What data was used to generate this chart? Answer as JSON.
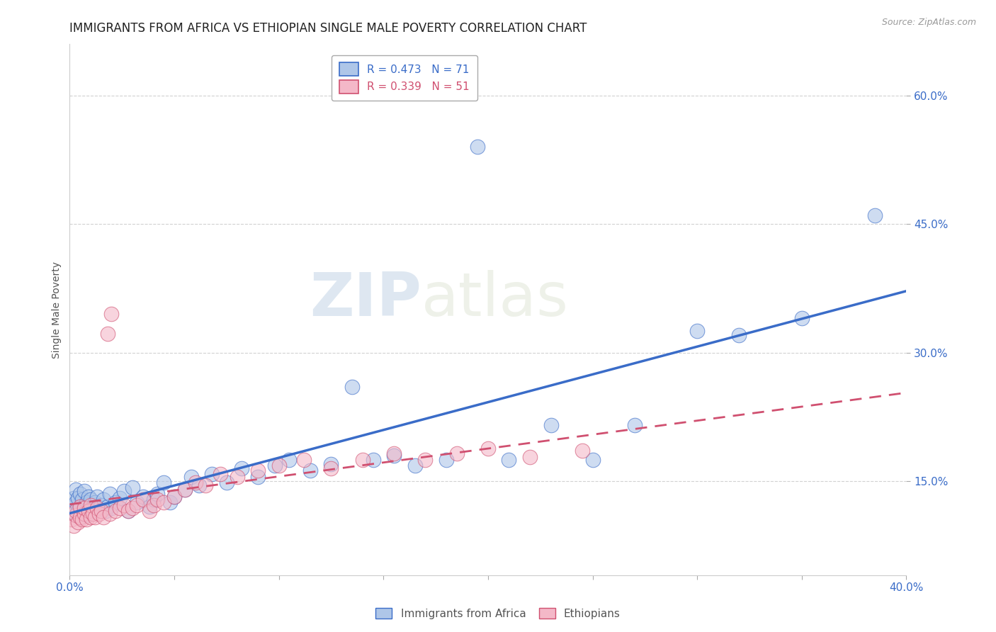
{
  "title": "IMMIGRANTS FROM AFRICA VS ETHIOPIAN SINGLE MALE POVERTY CORRELATION CHART",
  "source": "Source: ZipAtlas.com",
  "ylabel": "Single Male Poverty",
  "xlim": [
    0.0,
    0.4
  ],
  "ylim": [
    0.04,
    0.66
  ],
  "r_africa": 0.473,
  "n_africa": 71,
  "r_ethiopian": 0.339,
  "n_ethiopian": 51,
  "color_africa": "#aec6e8",
  "color_ethiopian": "#f4b8c8",
  "line_color_africa": "#3a6cc8",
  "line_color_ethiopian": "#d05070",
  "watermark_zip": "ZIP",
  "watermark_atlas": "atlas",
  "background_color": "#ffffff",
  "grid_color": "#cccccc",
  "title_fontsize": 12,
  "axis_label_fontsize": 10,
  "tick_fontsize": 11,
  "legend_fontsize": 11,
  "africa_x": [
    0.001,
    0.002,
    0.002,
    0.003,
    0.003,
    0.003,
    0.004,
    0.004,
    0.005,
    0.005,
    0.005,
    0.006,
    0.006,
    0.007,
    0.007,
    0.007,
    0.008,
    0.008,
    0.009,
    0.009,
    0.01,
    0.01,
    0.011,
    0.012,
    0.012,
    0.013,
    0.014,
    0.015,
    0.016,
    0.017,
    0.018,
    0.019,
    0.02,
    0.022,
    0.024,
    0.026,
    0.028,
    0.03,
    0.032,
    0.035,
    0.038,
    0.04,
    0.042,
    0.045,
    0.048,
    0.05,
    0.055,
    0.058,
    0.062,
    0.068,
    0.075,
    0.082,
    0.09,
    0.098,
    0.105,
    0.115,
    0.125,
    0.135,
    0.145,
    0.155,
    0.165,
    0.18,
    0.195,
    0.21,
    0.23,
    0.25,
    0.27,
    0.3,
    0.32,
    0.35,
    0.385
  ],
  "africa_y": [
    0.115,
    0.12,
    0.13,
    0.11,
    0.125,
    0.14,
    0.115,
    0.13,
    0.108,
    0.118,
    0.135,
    0.112,
    0.128,
    0.115,
    0.12,
    0.138,
    0.11,
    0.125,
    0.118,
    0.132,
    0.115,
    0.128,
    0.12,
    0.115,
    0.125,
    0.132,
    0.118,
    0.122,
    0.128,
    0.115,
    0.12,
    0.135,
    0.118,
    0.125,
    0.13,
    0.138,
    0.115,
    0.142,
    0.125,
    0.132,
    0.12,
    0.128,
    0.135,
    0.148,
    0.125,
    0.132,
    0.14,
    0.155,
    0.145,
    0.158,
    0.148,
    0.165,
    0.155,
    0.168,
    0.175,
    0.162,
    0.17,
    0.26,
    0.175,
    0.18,
    0.168,
    0.175,
    0.54,
    0.175,
    0.215,
    0.175,
    0.215,
    0.325,
    0.32,
    0.34,
    0.46
  ],
  "ethiopian_x": [
    0.001,
    0.002,
    0.003,
    0.003,
    0.004,
    0.005,
    0.005,
    0.006,
    0.007,
    0.007,
    0.008,
    0.009,
    0.01,
    0.01,
    0.011,
    0.012,
    0.013,
    0.014,
    0.015,
    0.016,
    0.018,
    0.019,
    0.02,
    0.022,
    0.024,
    0.026,
    0.028,
    0.03,
    0.032,
    0.035,
    0.038,
    0.04,
    0.042,
    0.045,
    0.05,
    0.055,
    0.06,
    0.065,
    0.072,
    0.08,
    0.09,
    0.1,
    0.112,
    0.125,
    0.14,
    0.155,
    0.17,
    0.185,
    0.2,
    0.22,
    0.245
  ],
  "ethiopian_y": [
    0.105,
    0.098,
    0.11,
    0.115,
    0.102,
    0.108,
    0.12,
    0.105,
    0.112,
    0.118,
    0.105,
    0.115,
    0.108,
    0.122,
    0.112,
    0.108,
    0.118,
    0.112,
    0.115,
    0.108,
    0.322,
    0.112,
    0.345,
    0.115,
    0.118,
    0.122,
    0.115,
    0.118,
    0.122,
    0.128,
    0.115,
    0.122,
    0.128,
    0.125,
    0.132,
    0.14,
    0.148,
    0.145,
    0.158,
    0.155,
    0.162,
    0.168,
    0.175,
    0.165,
    0.175,
    0.182,
    0.175,
    0.182,
    0.188,
    0.178,
    0.185
  ]
}
